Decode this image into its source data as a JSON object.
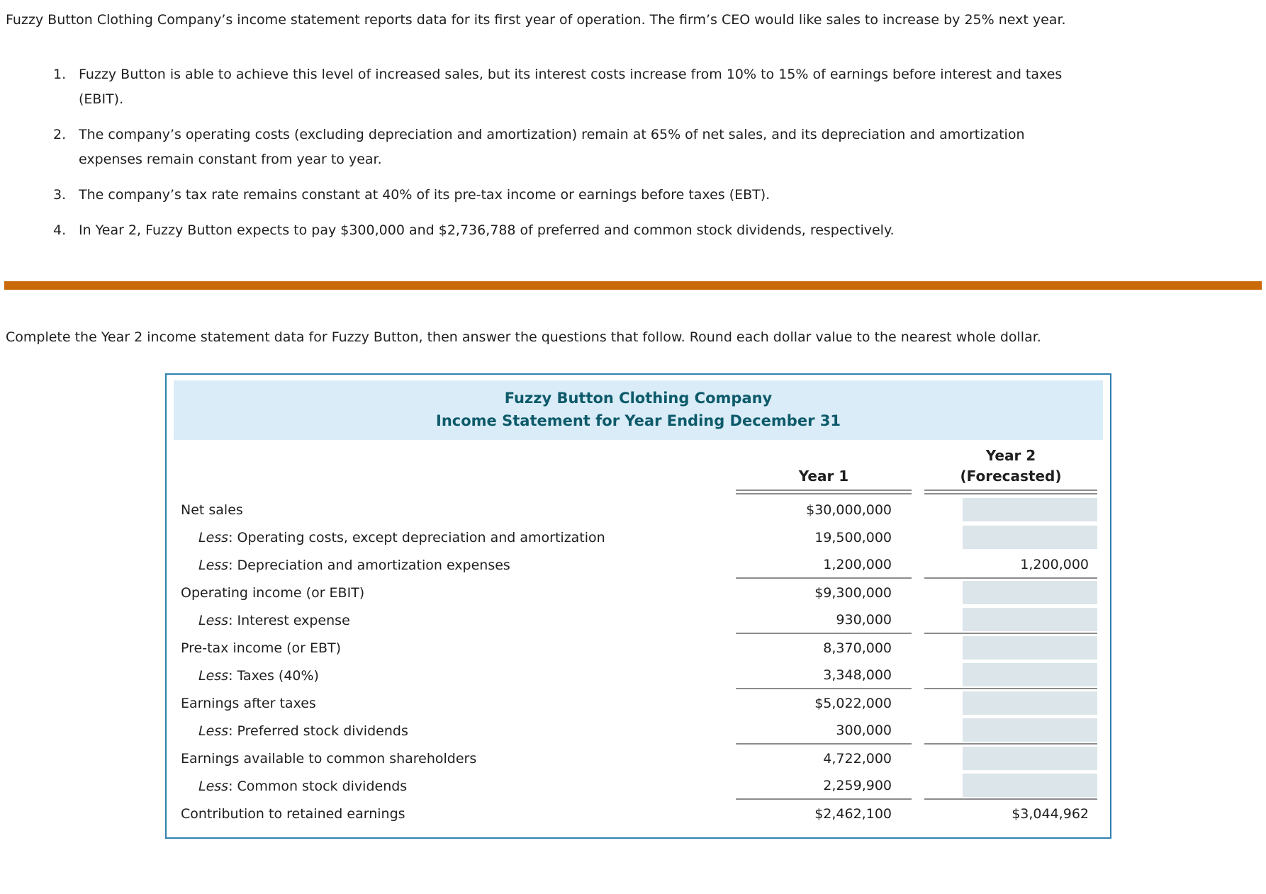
{
  "intro": "Fuzzy Button Clothing Company’s income statement reports data for its first year of operation. The firm’s CEO would like sales to increase by 25% next year.",
  "assumptions": [
    {
      "number": "1.",
      "text": "Fuzzy Button is able to achieve this level of increased sales, but its interest costs increase from 10% to 15% of earnings before interest and taxes (EBIT)."
    },
    {
      "number": "2.",
      "text": "The company’s operating costs (excluding depreciation and amortization) remain at 65% of net sales, and its depreciation and amortization expenses remain constant from year to year."
    },
    {
      "number": "3.",
      "text": "The company’s tax rate remains constant at 40% of its pre-tax income or earnings before taxes (EBT)."
    },
    {
      "number": "4.",
      "text": "In Year 2, Fuzzy Button expects to pay $300,000 and $2,736,788 of preferred and common stock dividends, respectively."
    }
  ],
  "instruction": "Complete the Year 2 income statement data for Fuzzy Button, then answer the questions that follow. Round each dollar value to the nearest whole dollar.",
  "table": {
    "title_line1": "Fuzzy Button Clothing Company",
    "title_line2": "Income Statement for Year Ending December 31",
    "col_year1": "Year 1",
    "col_year2_line1": "Year 2",
    "col_year2_line2": "(Forecasted)",
    "rows": [
      {
        "less": "",
        "label": "Net sales",
        "year1": "$30,000,000",
        "year2": ""
      },
      {
        "less": "Less",
        "label": ": Operating costs, except depreciation and amortization",
        "year1": "19,500,000",
        "year2": ""
      },
      {
        "less": "Less",
        "label": ": Depreciation and amortization expenses",
        "year1": "1,200,000",
        "year2": "1,200,000"
      },
      {
        "less": "",
        "label": "Operating income (or EBIT)",
        "year1": "$9,300,000",
        "year2": ""
      },
      {
        "less": "Less",
        "label": ": Interest expense",
        "year1": "930,000",
        "year2": ""
      },
      {
        "less": "",
        "label": "Pre-tax income (or EBT)",
        "year1": "8,370,000",
        "year2": ""
      },
      {
        "less": "Less",
        "label": ": Taxes (40%)",
        "year1": "3,348,000",
        "year2": ""
      },
      {
        "less": "",
        "label": "Earnings after taxes",
        "year1": "$5,022,000",
        "year2": ""
      },
      {
        "less": "Less",
        "label": ": Preferred stock dividends",
        "year1": "300,000",
        "year2": ""
      },
      {
        "less": "",
        "label": "Earnings available to common shareholders",
        "year1": "4,722,000",
        "year2": ""
      },
      {
        "less": "Less",
        "label": ": Common stock dividends",
        "year1": "2,259,900",
        "year2": ""
      },
      {
        "less": "",
        "label": "Contribution to retained earnings",
        "year1": "$2,462,100",
        "year2": "$3,044,962"
      }
    ]
  },
  "colors": {
    "accent_orange": "#c96908",
    "table_border": "#2f81ae",
    "header_band_bg": "#d9ecf7",
    "header_text_teal": "#0d5a6a",
    "input_bg": "#dbe5ea",
    "rule_gray": "#8c8c8c"
  }
}
